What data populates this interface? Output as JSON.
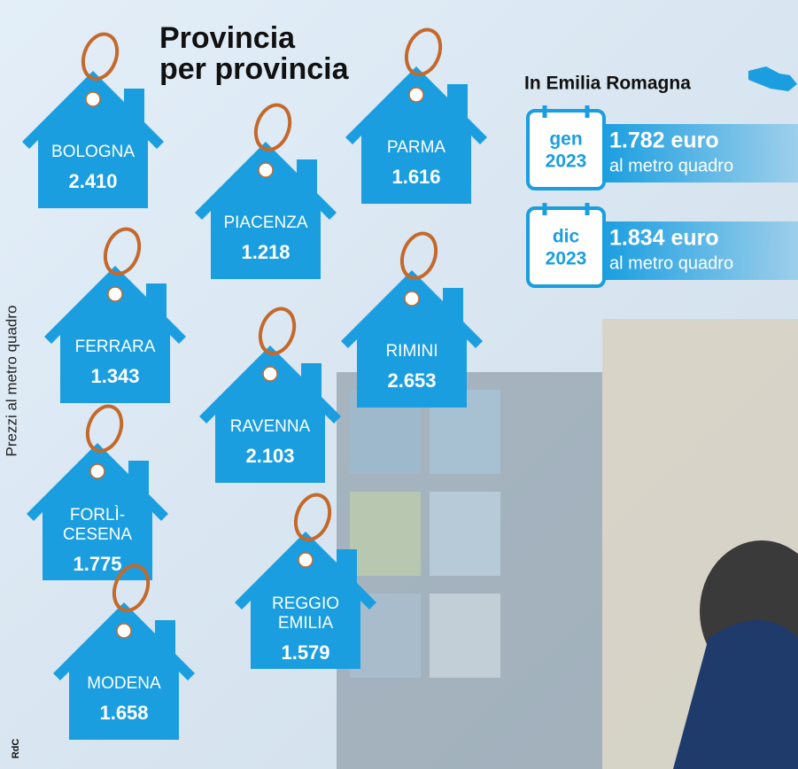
{
  "header": {
    "title_lines": [
      "Provincia",
      "per provincia"
    ],
    "side_label": "Prezzi al metro quadro"
  },
  "houses": [
    {
      "name_lines": [
        "BOLOGNA"
      ],
      "price": "2.410"
    },
    {
      "name_lines": [
        "PIACENZA"
      ],
      "price": "1.218"
    },
    {
      "name_lines": [
        "PARMA"
      ],
      "price": "1.616"
    },
    {
      "name_lines": [
        "FERRARA"
      ],
      "price": "1.343"
    },
    {
      "name_lines": [
        "RIMINI"
      ],
      "price": "2.653"
    },
    {
      "name_lines": [
        "RAVENNA"
      ],
      "price": "2.103"
    },
    {
      "name_lines": [
        "FORLÌ-",
        "CESENA"
      ],
      "price": "1.775"
    },
    {
      "name_lines": [
        "REGGIO",
        "EMILIA"
      ],
      "price": "1.579"
    },
    {
      "name_lines": [
        "MODENA"
      ],
      "price": "1.658"
    }
  ],
  "region": {
    "title": "In Emilia Romagna",
    "stats": [
      {
        "month": "gen",
        "year": "2023",
        "price": "1.782 euro",
        "unit": "al metro quadro"
      },
      {
        "month": "dic",
        "year": "2023",
        "price": "1.834 euro",
        "unit": "al metro quadro"
      }
    ]
  },
  "credit": "RdC"
}
